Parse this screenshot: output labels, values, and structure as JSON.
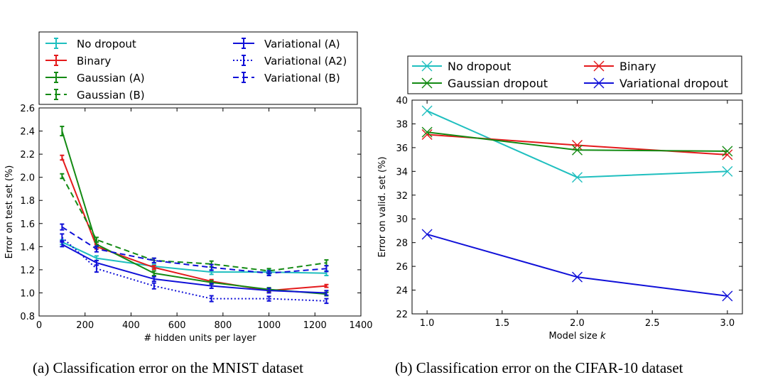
{
  "chart_data": [
    {
      "type": "line",
      "caption": "(a) Classification error on the MNIST dataset",
      "xlabel": "# hidden units per layer",
      "ylabel": "Error on test set (%)",
      "xlim": [
        0,
        1400
      ],
      "ylim": [
        0.8,
        2.6
      ],
      "xticks": [
        0,
        200,
        400,
        600,
        800,
        1000,
        1200,
        1400
      ],
      "yticks": [
        0.8,
        1.0,
        1.2,
        1.4,
        1.6,
        1.8,
        2.0,
        2.2,
        2.4,
        2.6
      ],
      "ytick_labels": [
        "0.8",
        "1.0",
        "1.2",
        "1.4",
        "1.6",
        "1.8",
        "2.0",
        "2.2",
        "2.4",
        "2.6"
      ],
      "grid": false,
      "legend_placement": "above plot, two columns",
      "x": [
        100,
        250,
        500,
        750,
        1000,
        1250
      ],
      "series": [
        {
          "name": "No dropout",
          "color": "#1fbfbf",
          "style": "solid",
          "values": [
            1.44,
            1.3,
            1.23,
            1.18,
            1.18,
            1.17
          ],
          "err": [
            0.02,
            0.02,
            0.015,
            0.02,
            0.02,
            0.02
          ]
        },
        {
          "name": "Binary",
          "color": "#e41a1c",
          "style": "solid",
          "values": [
            2.17,
            1.4,
            1.22,
            1.1,
            1.02,
            1.06
          ],
          "err": [
            0.02,
            0.02,
            0.015,
            0.015,
            0.015,
            0.012
          ]
        },
        {
          "name": "Gaussian (A)",
          "color": "#138a13",
          "style": "solid",
          "values": [
            2.4,
            1.42,
            1.17,
            1.09,
            1.03,
            0.99
          ],
          "err": [
            0.04,
            0.02,
            0.02,
            0.015,
            0.015,
            0.015
          ]
        },
        {
          "name": "Gaussian (B)",
          "color": "#138a13",
          "style": "dashed",
          "values": [
            2.01,
            1.46,
            1.28,
            1.25,
            1.19,
            1.26
          ],
          "err": [
            0.02,
            0.02,
            0.02,
            0.025,
            0.02,
            0.025
          ]
        },
        {
          "name": "Variational (A)",
          "color": "#1010d8",
          "style": "solid",
          "values": [
            1.42,
            1.26,
            1.12,
            1.06,
            1.02,
            1.0
          ],
          "err": [
            0.02,
            0.02,
            0.02,
            0.02,
            0.02,
            0.02
          ]
        },
        {
          "name": "Variational (A2)",
          "color": "#1010d8",
          "style": "dotted",
          "values": [
            1.48,
            1.21,
            1.06,
            0.95,
            0.95,
            0.93
          ],
          "err": [
            0.03,
            0.03,
            0.025,
            0.025,
            0.02,
            0.02
          ]
        },
        {
          "name": "Variational (B)",
          "color": "#1010d8",
          "style": "dashed",
          "values": [
            1.57,
            1.38,
            1.28,
            1.22,
            1.17,
            1.21
          ],
          "err": [
            0.025,
            0.025,
            0.02,
            0.025,
            0.02,
            0.025
          ]
        }
      ]
    },
    {
      "type": "line",
      "caption": "(b) Classification error on the CIFAR-10 dataset",
      "xlabel": "Model size ",
      "xlabel_var": "k",
      "ylabel": "Error on valid. set (%)",
      "xlim": [
        0.9,
        3.1
      ],
      "ylim": [
        22,
        40
      ],
      "xticks": [
        1.0,
        1.5,
        2.0,
        2.5,
        3.0
      ],
      "xtick_labels": [
        "1.0",
        "1.5",
        "2.0",
        "2.5",
        "3.0"
      ],
      "yticks": [
        22,
        24,
        26,
        28,
        30,
        32,
        34,
        36,
        38,
        40
      ],
      "grid": false,
      "legend_placement": "above plot, two columns",
      "marker": "x",
      "x": [
        1.0,
        2.0,
        3.0
      ],
      "series": [
        {
          "name": "No dropout",
          "color": "#1fbfbf",
          "values": [
            39.1,
            33.5,
            34.0
          ]
        },
        {
          "name": "Binary",
          "color": "#e41a1c",
          "values": [
            37.1,
            36.2,
            35.4
          ]
        },
        {
          "name": "Gaussian dropout",
          "color": "#138a13",
          "values": [
            37.3,
            35.8,
            35.7
          ]
        },
        {
          "name": "Variational dropout",
          "color": "#1010d8",
          "values": [
            28.7,
            25.1,
            23.5
          ]
        }
      ]
    }
  ]
}
